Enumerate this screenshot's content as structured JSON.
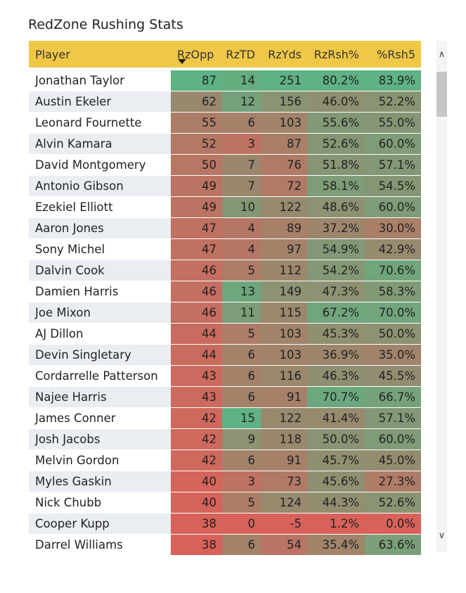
{
  "title": "RedZone Rushing Stats",
  "columns": [
    "Player",
    "RzOpp",
    "RzTD",
    "RzYds",
    "RzRsh%",
    "%Rsh5"
  ],
  "sort": {
    "column": "RzOpp",
    "direction": "descending"
  },
  "scroll": {
    "up_icon": "chevron-up-icon",
    "down_icon": "chevron-down-icon"
  },
  "rows": [
    {
      "player": "Jonathan Taylor",
      "rzopp": "87",
      "rztd": "14",
      "rzyds": "251",
      "rzrsh": "80.2%",
      "rsh5": "83.9%"
    },
    {
      "player": "Austin Ekeler",
      "rzopp": "62",
      "rztd": "12",
      "rzyds": "156",
      "rzrsh": "46.0%",
      "rsh5": "52.2%"
    },
    {
      "player": "Leonard Fournette",
      "rzopp": "55",
      "rztd": "6",
      "rzyds": "103",
      "rzrsh": "55.6%",
      "rsh5": "55.0%"
    },
    {
      "player": "Alvin Kamara",
      "rzopp": "52",
      "rztd": "3",
      "rzyds": "87",
      "rzrsh": "52.6%",
      "rsh5": "60.0%"
    },
    {
      "player": "David Montgomery",
      "rzopp": "50",
      "rztd": "7",
      "rzyds": "76",
      "rzrsh": "51.8%",
      "rsh5": "57.1%"
    },
    {
      "player": "Antonio Gibson",
      "rzopp": "49",
      "rztd": "7",
      "rzyds": "72",
      "rzrsh": "58.1%",
      "rsh5": "54.5%"
    },
    {
      "player": "Ezekiel Elliott",
      "rzopp": "49",
      "rztd": "10",
      "rzyds": "122",
      "rzrsh": "48.6%",
      "rsh5": "60.0%"
    },
    {
      "player": "Aaron Jones",
      "rzopp": "47",
      "rztd": "4",
      "rzyds": "89",
      "rzrsh": "37.2%",
      "rsh5": "30.0%"
    },
    {
      "player": "Sony Michel",
      "rzopp": "47",
      "rztd": "4",
      "rzyds": "97",
      "rzrsh": "54.9%",
      "rsh5": "42.9%"
    },
    {
      "player": "Dalvin Cook",
      "rzopp": "46",
      "rztd": "5",
      "rzyds": "112",
      "rzrsh": "54.2%",
      "rsh5": "70.6%"
    },
    {
      "player": "Damien Harris",
      "rzopp": "46",
      "rztd": "13",
      "rzyds": "149",
      "rzrsh": "47.3%",
      "rsh5": "58.3%"
    },
    {
      "player": "Joe Mixon",
      "rzopp": "46",
      "rztd": "11",
      "rzyds": "115",
      "rzrsh": "67.2%",
      "rsh5": "70.0%"
    },
    {
      "player": "AJ Dillon",
      "rzopp": "44",
      "rztd": "5",
      "rzyds": "103",
      "rzrsh": "45.3%",
      "rsh5": "50.0%"
    },
    {
      "player": "Devin Singletary",
      "rzopp": "44",
      "rztd": "6",
      "rzyds": "103",
      "rzrsh": "36.9%",
      "rsh5": "35.0%"
    },
    {
      "player": "Cordarrelle Patterson",
      "rzopp": "43",
      "rztd": "6",
      "rzyds": "116",
      "rzrsh": "46.3%",
      "rsh5": "45.5%"
    },
    {
      "player": "Najee Harris",
      "rzopp": "43",
      "rztd": "6",
      "rzyds": "91",
      "rzrsh": "70.7%",
      "rsh5": "66.7%"
    },
    {
      "player": "James Conner",
      "rzopp": "42",
      "rztd": "15",
      "rzyds": "122",
      "rzrsh": "41.4%",
      "rsh5": "57.1%"
    },
    {
      "player": "Josh Jacobs",
      "rzopp": "42",
      "rztd": "9",
      "rzyds": "118",
      "rzrsh": "50.0%",
      "rsh5": "60.0%"
    },
    {
      "player": "Melvin Gordon",
      "rzopp": "42",
      "rztd": "6",
      "rzyds": "91",
      "rzrsh": "45.7%",
      "rsh5": "45.0%"
    },
    {
      "player": "Myles Gaskin",
      "rzopp": "40",
      "rztd": "3",
      "rzyds": "73",
      "rzrsh": "45.6%",
      "rsh5": "27.3%"
    },
    {
      "player": "Nick Chubb",
      "rzopp": "40",
      "rztd": "5",
      "rzyds": "124",
      "rzrsh": "44.3%",
      "rsh5": "52.6%"
    },
    {
      "player": "Cooper Kupp",
      "rzopp": "38",
      "rztd": "0",
      "rzyds": "-5",
      "rzrsh": "1.2%",
      "rsh5": "0.0%"
    },
    {
      "player": "Darrel Williams",
      "rzopp": "38",
      "rztd": "6",
      "rzyds": "54",
      "rzrsh": "35.4%",
      "rsh5": "63.6%"
    }
  ],
  "colors": {
    "header_bg": "#f0c847",
    "scale_low": "#d8625a",
    "scale_mid": "#978a6e",
    "scale_high": "#5fb283",
    "row_alt": "#eaedf1"
  }
}
